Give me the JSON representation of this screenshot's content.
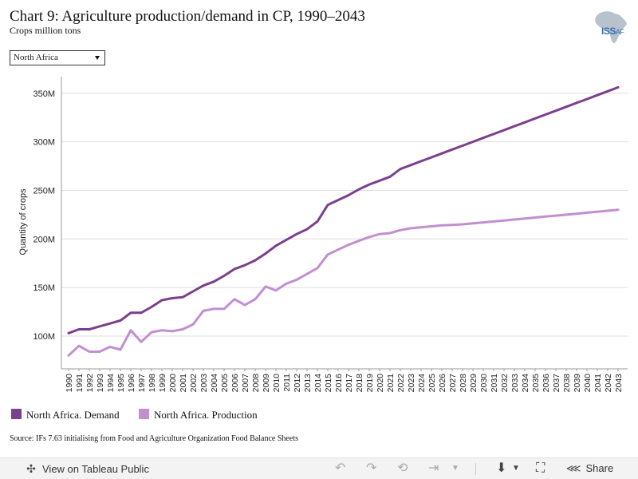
{
  "header": {
    "title": "Chart 9: Agriculture production/demand in CP, 1990–2043",
    "subtitle": "Crops million tons",
    "logo_text": "ISS",
    "logo_suffix": "AF"
  },
  "filter": {
    "selected": "North Africa"
  },
  "colors": {
    "demand": "#7b3f8c",
    "production": "#c38ed0",
    "grid": "#dedede",
    "axis": "#999999"
  },
  "chart_data": {
    "type": "line",
    "title": "",
    "xlabel": "",
    "ylabel": "Quantity of crops",
    "ylim": [
      70,
      360
    ],
    "y_ticks": [
      100,
      150,
      200,
      250,
      300,
      350
    ],
    "y_tick_labels": [
      "100M",
      "150M",
      "200M",
      "250M",
      "300M",
      "350M"
    ],
    "grid": "horizontal",
    "legend_position": "bottom-left",
    "x": [
      1990,
      1991,
      1992,
      1993,
      1994,
      1995,
      1996,
      1997,
      1998,
      1999,
      2000,
      2001,
      2002,
      2003,
      2004,
      2005,
      2006,
      2007,
      2008,
      2009,
      2010,
      2011,
      2012,
      2013,
      2014,
      2015,
      2016,
      2017,
      2018,
      2019,
      2020,
      2021,
      2022,
      2023,
      2024,
      2025,
      2026,
      2027,
      2028,
      2029,
      2030,
      2031,
      2032,
      2033,
      2034,
      2035,
      2036,
      2037,
      2038,
      2039,
      2040,
      2041,
      2042,
      2043
    ],
    "series": [
      {
        "name": "North Africa. Demand",
        "color": "#7b3f8c",
        "values": [
          103,
          107,
          107,
          110,
          113,
          116,
          124,
          124,
          130,
          137,
          139,
          140,
          146,
          152,
          156,
          162,
          169,
          173,
          178,
          185,
          193,
          199,
          205,
          210,
          218,
          235,
          240,
          245,
          251,
          256,
          260,
          264,
          272,
          276,
          280,
          284,
          288,
          292,
          296,
          300,
          304,
          308,
          312,
          316,
          320,
          324,
          328,
          332,
          336,
          340,
          344,
          348,
          352,
          356
        ]
      },
      {
        "name": "North Africa. Production",
        "color": "#c38ed0",
        "values": [
          80,
          90,
          84,
          84,
          89,
          86,
          106,
          94,
          104,
          106,
          105,
          107,
          112,
          126,
          128,
          128,
          138,
          132,
          138,
          151,
          147,
          154,
          158,
          164,
          170,
          184,
          189,
          194,
          198,
          202,
          205,
          206,
          209,
          211,
          212,
          213,
          214,
          214.5,
          215,
          216,
          217,
          218,
          219,
          220,
          221,
          222,
          223,
          224,
          225,
          226,
          227,
          228,
          229,
          230
        ]
      }
    ]
  },
  "source": "Source: IFs 7.63 initialising from Food and Agriculture Organization Food Balance Sheets",
  "toolbar": {
    "view_label": "View on Tableau Public",
    "share_label": "Share"
  }
}
